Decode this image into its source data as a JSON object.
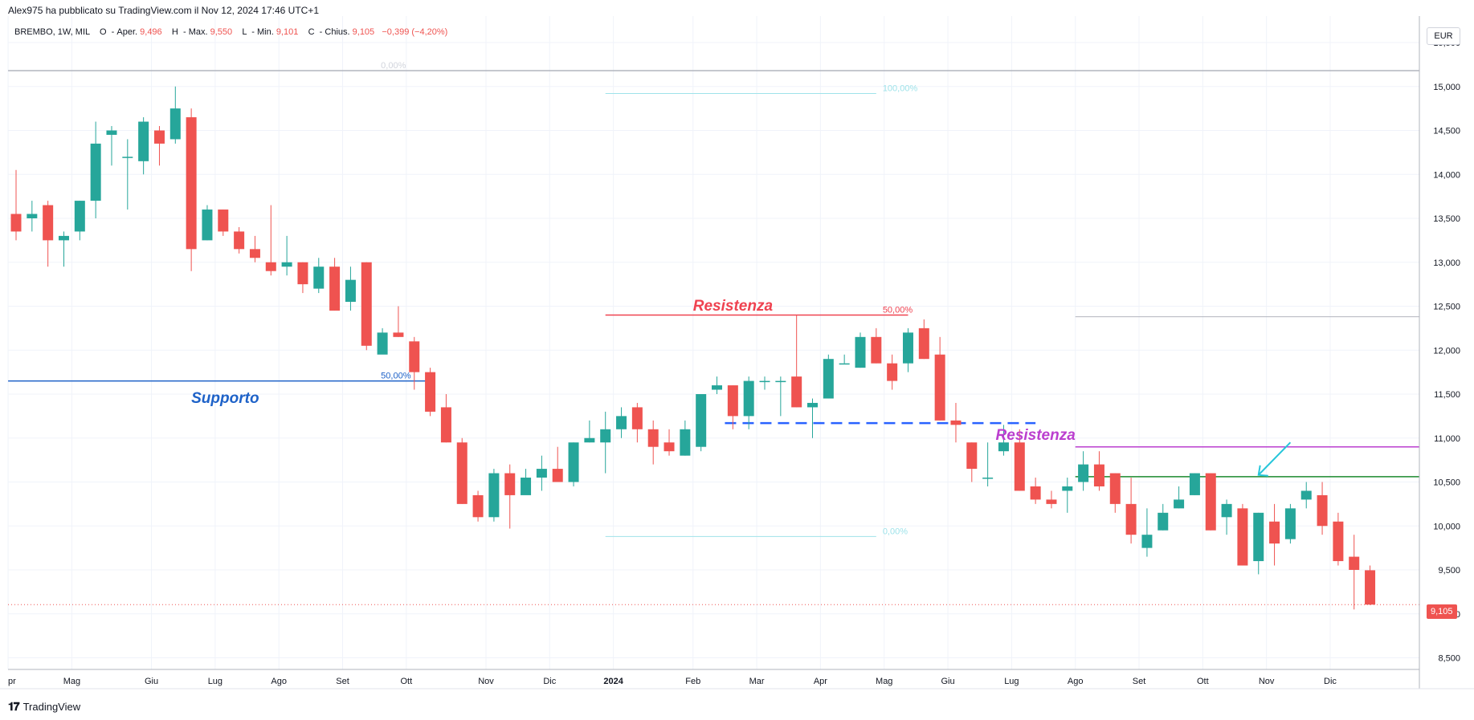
{
  "header": {
    "published": "Alex975 ha pubblicato su TradingView.com il Nov 12, 2024 17:46 UTC+1",
    "symbol": "BREMBO, 1W, MIL",
    "open_label": "O",
    "open_text": "Aper.",
    "open_value": "9,496",
    "high_label": "H",
    "high_text": "Max.",
    "high_value": "9,550",
    "low_label": "L",
    "low_text": "Min.",
    "low_value": "9,101",
    "close_label": "C",
    "close_text": "Chius.",
    "close_value": "9,105",
    "change": "−0,399 (−4,20%)"
  },
  "currency": "EUR",
  "last_price_label": "9,105",
  "branding": {
    "logo_text": "TradingView"
  },
  "colors": {
    "up": "#26a69a",
    "down": "#ef5350",
    "support": "#1e62c8",
    "resistance_red": "#ef4250",
    "resistance_purple": "#bb3fcf",
    "green_line": "#1b8a2e",
    "fib": "#9fe3ea",
    "arrow": "#26c6da"
  },
  "annotations": {
    "supporto": "Supporto",
    "resistenza_1": "Resistenza",
    "resistenza_2": "Resistenza",
    "fib_left_0": "0,00%",
    "fib_left_50": "50,00%",
    "fib_right_100": "100,00%",
    "fib_right_50": "50,00%",
    "fib_right_0": "0,00%"
  },
  "chart_data": {
    "type": "candlestick",
    "title": "BREMBO, 1W, MIL",
    "ylim": [
      8.5,
      15.5
    ],
    "y_ticks": [
      {
        "v": 15.5,
        "label": "15,500"
      },
      {
        "v": 15.0,
        "label": "15,000"
      },
      {
        "v": 14.5,
        "label": "14,500"
      },
      {
        "v": 14.0,
        "label": "14,000"
      },
      {
        "v": 13.5,
        "label": "13,500"
      },
      {
        "v": 13.0,
        "label": "13,000"
      },
      {
        "v": 12.5,
        "label": "12,500"
      },
      {
        "v": 12.0,
        "label": "12,000"
      },
      {
        "v": 11.5,
        "label": "11,500"
      },
      {
        "v": 11.0,
        "label": "11,000"
      },
      {
        "v": 10.5,
        "label": "10,500"
      },
      {
        "v": 10.0,
        "label": "10,000"
      },
      {
        "v": 9.5,
        "label": "9,500"
      },
      {
        "v": 9.0,
        "label": "9,000"
      },
      {
        "v": 8.5,
        "label": "8,500"
      }
    ],
    "x_ticks": [
      {
        "w": -0.5,
        "label": "pr"
      },
      {
        "w": 3.5,
        "label": "Mag"
      },
      {
        "w": 8.5,
        "label": "Giu"
      },
      {
        "w": 12.5,
        "label": "Lug"
      },
      {
        "w": 16.5,
        "label": "Ago"
      },
      {
        "w": 20.5,
        "label": "Set"
      },
      {
        "w": 24.5,
        "label": "Ott"
      },
      {
        "w": 29.5,
        "label": "Nov"
      },
      {
        "w": 33.5,
        "label": "Dic"
      },
      {
        "w": 37.5,
        "label": "2024",
        "bold": true
      },
      {
        "w": 42.5,
        "label": "Feb"
      },
      {
        "w": 46.5,
        "label": "Mar"
      },
      {
        "w": 50.5,
        "label": "Apr"
      },
      {
        "w": 54.5,
        "label": "Mag"
      },
      {
        "w": 58.5,
        "label": "Giu"
      },
      {
        "w": 62.5,
        "label": "Lug"
      },
      {
        "w": 66.5,
        "label": "Ago"
      },
      {
        "w": 70.5,
        "label": "Set"
      },
      {
        "w": 74.5,
        "label": "Ott"
      },
      {
        "w": 78.5,
        "label": "Nov"
      },
      {
        "w": 82.5,
        "label": "Dic"
      }
    ],
    "candles": [
      [
        13.55,
        13.35,
        14.05,
        13.25
      ],
      [
        13.5,
        13.55,
        13.7,
        13.35
      ],
      [
        13.65,
        13.25,
        13.7,
        12.95
      ],
      [
        13.25,
        13.3,
        13.35,
        12.95
      ],
      [
        13.35,
        13.7,
        13.7,
        13.25
      ],
      [
        13.7,
        14.35,
        14.6,
        13.5
      ],
      [
        14.45,
        14.5,
        14.55,
        14.1
      ],
      [
        14.2,
        14.2,
        14.4,
        13.6
      ],
      [
        14.15,
        14.6,
        14.65,
        14.0
      ],
      [
        14.5,
        14.35,
        14.55,
        14.1
      ],
      [
        14.4,
        14.75,
        15.0,
        14.35
      ],
      [
        14.65,
        13.15,
        14.75,
        12.9
      ],
      [
        13.25,
        13.6,
        13.65,
        13.25
      ],
      [
        13.6,
        13.35,
        13.6,
        13.3
      ],
      [
        13.35,
        13.15,
        13.4,
        13.1
      ],
      [
        13.15,
        13.05,
        13.3,
        13.0
      ],
      [
        13.0,
        12.9,
        13.65,
        12.85
      ],
      [
        12.95,
        13.0,
        13.3,
        12.85
      ],
      [
        13.0,
        12.75,
        13.0,
        12.65
      ],
      [
        12.7,
        12.95,
        13.05,
        12.65
      ],
      [
        12.95,
        12.45,
        13.05,
        12.45
      ],
      [
        12.55,
        12.8,
        12.95,
        12.45
      ],
      [
        13.0,
        12.05,
        13.0,
        12.0
      ],
      [
        11.95,
        12.2,
        12.25,
        12.1
      ],
      [
        12.2,
        12.15,
        12.5,
        12.15
      ],
      [
        12.1,
        11.75,
        12.15,
        11.55
      ],
      [
        11.75,
        11.3,
        11.8,
        11.25
      ],
      [
        11.35,
        10.95,
        11.5,
        10.95
      ],
      [
        10.95,
        10.25,
        11.0,
        10.25
      ],
      [
        10.35,
        10.1,
        10.4,
        10.05
      ],
      [
        10.1,
        10.6,
        10.65,
        10.05
      ],
      [
        10.6,
        10.35,
        10.7,
        9.97
      ],
      [
        10.35,
        10.55,
        10.65,
        10.45
      ],
      [
        10.55,
        10.65,
        10.8,
        10.4
      ],
      [
        10.65,
        10.5,
        10.9,
        10.5
      ],
      [
        10.5,
        10.95,
        10.95,
        10.45
      ],
      [
        10.95,
        11.0,
        11.2,
        10.95
      ],
      [
        10.95,
        11.1,
        11.3,
        10.6
      ],
      [
        11.1,
        11.25,
        11.35,
        11.0
      ],
      [
        11.35,
        11.1,
        11.4,
        10.95
      ],
      [
        11.1,
        10.9,
        11.2,
        10.7
      ],
      [
        10.95,
        10.85,
        11.1,
        10.8
      ],
      [
        10.8,
        11.1,
        11.2,
        10.8
      ],
      [
        10.9,
        11.5,
        11.5,
        10.85
      ],
      [
        11.55,
        11.6,
        11.7,
        11.5
      ],
      [
        11.6,
        11.25,
        11.6,
        11.1
      ],
      [
        11.25,
        11.65,
        11.7,
        11.1
      ],
      [
        11.65,
        11.65,
        11.7,
        11.55
      ],
      [
        11.65,
        11.65,
        11.7,
        11.25
      ],
      [
        11.7,
        11.35,
        12.4,
        11.35
      ],
      [
        11.35,
        11.4,
        11.45,
        11.0
      ],
      [
        11.45,
        11.9,
        11.95,
        11.45
      ],
      [
        11.85,
        11.85,
        11.95,
        11.85
      ],
      [
        11.8,
        12.15,
        12.2,
        11.8
      ],
      [
        12.15,
        11.85,
        12.25,
        11.85
      ],
      [
        11.85,
        11.65,
        11.95,
        11.55
      ],
      [
        11.85,
        12.2,
        12.25,
        11.75
      ],
      [
        12.25,
        11.9,
        12.35,
        11.9
      ],
      [
        11.95,
        11.2,
        12.15,
        11.2
      ],
      [
        11.2,
        11.15,
        11.4,
        10.95
      ],
      [
        10.95,
        10.65,
        10.95,
        10.5
      ],
      [
        10.55,
        10.55,
        10.95,
        10.45
      ],
      [
        10.85,
        10.95,
        11.15,
        10.8
      ],
      [
        10.95,
        10.4,
        11.1,
        10.4
      ],
      [
        10.45,
        10.3,
        10.55,
        10.25
      ],
      [
        10.3,
        10.25,
        10.4,
        10.2
      ],
      [
        10.4,
        10.45,
        10.55,
        10.15
      ],
      [
        10.5,
        10.7,
        10.85,
        10.4
      ],
      [
        10.7,
        10.45,
        10.85,
        10.4
      ],
      [
        10.6,
        10.25,
        10.6,
        10.15
      ],
      [
        10.25,
        9.9,
        10.55,
        9.8
      ],
      [
        9.75,
        9.9,
        10.2,
        9.65
      ],
      [
        9.95,
        10.15,
        10.25,
        9.95
      ],
      [
        10.2,
        10.3,
        10.45,
        10.2
      ],
      [
        10.35,
        10.6,
        10.6,
        10.35
      ],
      [
        10.6,
        9.95,
        10.6,
        9.95
      ],
      [
        10.1,
        10.25,
        10.3,
        9.9
      ],
      [
        10.2,
        9.55,
        10.25,
        9.55
      ],
      [
        9.6,
        10.15,
        10.15,
        9.45
      ],
      [
        10.05,
        9.8,
        10.25,
        9.55
      ],
      [
        9.85,
        10.2,
        10.25,
        9.8
      ],
      [
        10.3,
        10.4,
        10.5,
        10.2
      ],
      [
        10.35,
        10.0,
        10.5,
        9.9
      ],
      [
        10.05,
        9.6,
        10.15,
        9.55
      ],
      [
        9.65,
        9.5,
        9.9,
        9.05
      ],
      [
        9.496,
        9.105,
        9.55,
        9.101
      ]
    ],
    "lines": [
      {
        "name": "supporto-line",
        "value": 11.65,
        "w0": -0.5,
        "w1": 26.0
      },
      {
        "name": "resistenza-red-line",
        "value": 12.4,
        "w0": 37.0,
        "w1": 56.0
      },
      {
        "name": "dashed-blue-line",
        "value": 11.17,
        "w0": 44.5,
        "w1": 64.0
      },
      {
        "name": "resistenza-purple-line",
        "value": 10.9,
        "w0": 66.5,
        "w1": 89.0
      },
      {
        "name": "green-line",
        "value": 10.56,
        "w0": 66.5,
        "w1": 89.0
      },
      {
        "name": "gray-line-right",
        "value": 12.38,
        "w0": 66.5,
        "w1": 89.0
      },
      {
        "name": "gray-line-top",
        "value": 15.18,
        "w0": -0.5,
        "w1": 89.0
      }
    ],
    "last_price": 9.105
  }
}
